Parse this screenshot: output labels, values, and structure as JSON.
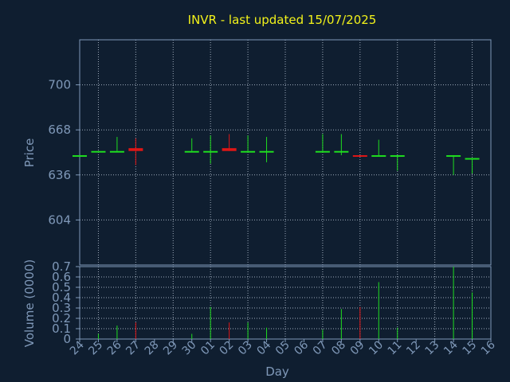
{
  "title": "INVR - last updated 15/07/2025",
  "colors": {
    "up": "#1fdd1f",
    "down": "#e01616",
    "text": "#7f98b8",
    "title": "#f2f21a",
    "background": "#0f1e30"
  },
  "chart_data": [
    {
      "type": "candlestick",
      "title": "INVR - last updated 15/07/2025",
      "ylabel": "Price",
      "ylim": [
        572,
        732
      ],
      "yticks": [
        604,
        636,
        668,
        700
      ],
      "grid": true,
      "candles": [
        {
          "day": "24",
          "open": 650,
          "close": 650,
          "high": 650,
          "low": 650,
          "dir": "up"
        },
        {
          "day": "25",
          "open": 653,
          "close": 653,
          "high": 653,
          "low": 653,
          "dir": "up"
        },
        {
          "day": "26",
          "open": 653,
          "close": 653,
          "high": 663,
          "low": 653,
          "dir": "up"
        },
        {
          "day": "27",
          "open": 655,
          "close": 653,
          "high": 662,
          "low": 643,
          "dir": "down"
        },
        {
          "day": "30",
          "open": 653,
          "close": 653,
          "high": 662,
          "low": 653,
          "dir": "up"
        },
        {
          "day": "01",
          "open": 653,
          "close": 653,
          "high": 664,
          "low": 644,
          "dir": "up"
        },
        {
          "day": "02",
          "open": 655,
          "close": 653,
          "high": 665,
          "low": 653,
          "dir": "down"
        },
        {
          "day": "03",
          "open": 653,
          "close": 653,
          "high": 664,
          "low": 653,
          "dir": "up"
        },
        {
          "day": "04",
          "open": 653,
          "close": 653,
          "high": 663,
          "low": 645,
          "dir": "up"
        },
        {
          "day": "07",
          "open": 653,
          "close": 653,
          "high": 665,
          "low": 653,
          "dir": "up"
        },
        {
          "day": "08",
          "open": 653,
          "close": 653,
          "high": 665,
          "low": 650,
          "dir": "up"
        },
        {
          "day": "09",
          "open": 650,
          "close": 650,
          "high": 650,
          "low": 650,
          "dir": "down"
        },
        {
          "day": "10",
          "open": 650,
          "close": 650,
          "high": 661,
          "low": 650,
          "dir": "up"
        },
        {
          "day": "11",
          "open": 650,
          "close": 650,
          "high": 650,
          "low": 639,
          "dir": "up"
        },
        {
          "day": "14",
          "open": 650,
          "close": 650,
          "high": 650,
          "low": 636,
          "dir": "up"
        },
        {
          "day": "15",
          "open": 648,
          "close": 648,
          "high": 648,
          "low": 637,
          "dir": "up"
        }
      ]
    },
    {
      "type": "bar",
      "ylabel": "Volume (0000)",
      "xlabel": "Day",
      "ylim": [
        0,
        0.7
      ],
      "yticks": [
        "0",
        "0.1",
        "0.2",
        "0.3",
        "0.4",
        "0.5",
        "0.6",
        "0.7"
      ],
      "grid": true,
      "categories": [
        "24",
        "25",
        "26",
        "27",
        "28",
        "29",
        "30",
        "01",
        "02",
        "03",
        "04",
        "05",
        "06",
        "07",
        "08",
        "09",
        "10",
        "11",
        "12",
        "13",
        "14",
        "15",
        "16"
      ],
      "bars": [
        {
          "day": "25",
          "value": 0.05,
          "dir": "up"
        },
        {
          "day": "26",
          "value": 0.13,
          "dir": "up"
        },
        {
          "day": "27",
          "value": 0.16,
          "dir": "down"
        },
        {
          "day": "30",
          "value": 0.05,
          "dir": "up"
        },
        {
          "day": "01",
          "value": 0.31,
          "dir": "up"
        },
        {
          "day": "02",
          "value": 0.16,
          "dir": "down"
        },
        {
          "day": "03",
          "value": 0.16,
          "dir": "up"
        },
        {
          "day": "04",
          "value": 0.11,
          "dir": "up"
        },
        {
          "day": "07",
          "value": 0.09,
          "dir": "up"
        },
        {
          "day": "08",
          "value": 0.29,
          "dir": "up"
        },
        {
          "day": "09",
          "value": 0.31,
          "dir": "down"
        },
        {
          "day": "10",
          "value": 0.55,
          "dir": "up"
        },
        {
          "day": "11",
          "value": 0.11,
          "dir": "up"
        },
        {
          "day": "14",
          "value": 0.7,
          "dir": "up"
        },
        {
          "day": "15",
          "value": 0.45,
          "dir": "up"
        }
      ]
    }
  ]
}
